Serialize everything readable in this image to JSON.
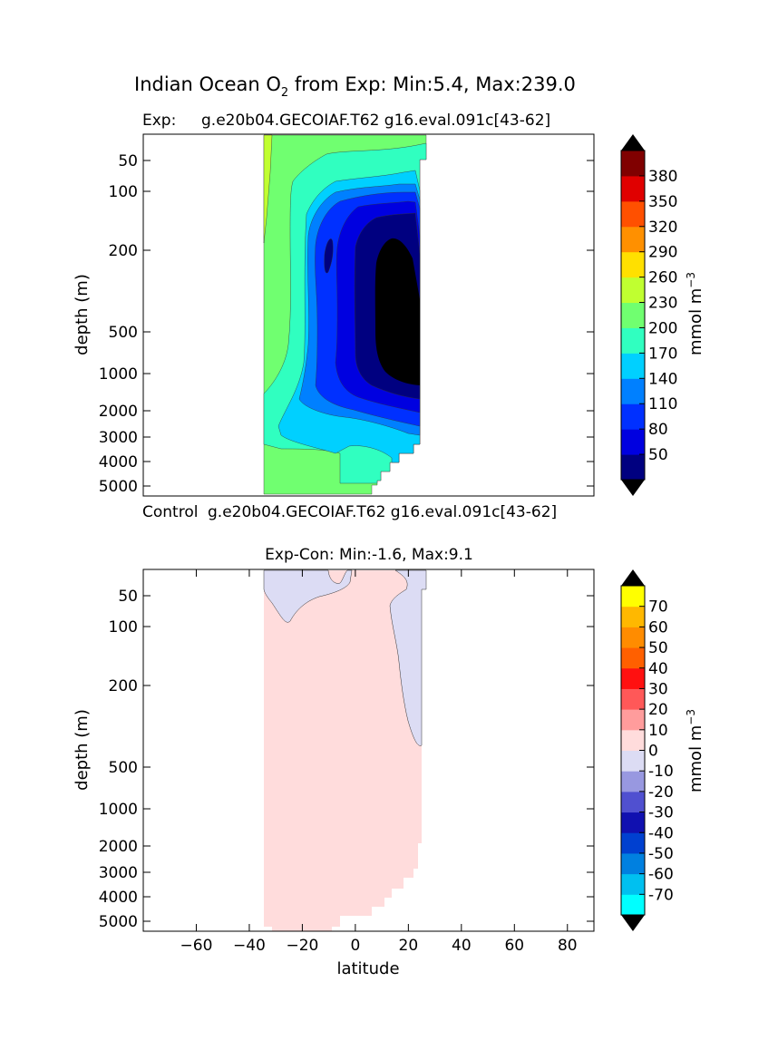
{
  "figure": {
    "suptitle_main": "Indian Ocean O",
    "suptitle_sub": "2",
    "suptitle_rest": " from Exp: Min:5.4, Max:239.0"
  },
  "chart_data": [
    {
      "type": "heatmap",
      "title_left": "Exp:",
      "title_right": "g.e20b04.GECOIAF.T62 g16.eval.091c[43-62]",
      "ylabel": "depth (m)",
      "xlabel": "",
      "x_range": [
        -80,
        90
      ],
      "y_scale": "log-like depth (inverted)",
      "y_range": [
        5600,
        20
      ],
      "yticks": [
        "50",
        "100",
        "200",
        "500",
        "1000",
        "2000",
        "3000",
        "4000",
        "5000"
      ],
      "colorbar": {
        "label": "mmol m",
        "label_exp": "−3",
        "extend": "both",
        "ticks": [
          "50",
          "80",
          "110",
          "140",
          "170",
          "200",
          "230",
          "260",
          "290",
          "320",
          "350",
          "380"
        ],
        "colors": [
          "#000080",
          "#0000e0",
          "#0030ff",
          "#0080ff",
          "#00d0ff",
          "#30ffc0",
          "#70ff70",
          "#c0ff30",
          "#ffe000",
          "#ff9000",
          "#ff5000",
          "#e00000",
          "#800000"
        ],
        "under_color": "#000000",
        "over_color": "#000000"
      },
      "field": {
        "lat_range": [
          -34,
          26
        ],
        "min": 5.4,
        "max": 239.0,
        "levels": [
          {
            "label": "230-260 (near -34° surface)",
            "lat": [
              -34,
              -32
            ],
            "depth": [
              20,
              200
            ]
          },
          {
            "label": "200-230",
            "lat": [
              -34,
              26
            ],
            "depth": [
              20,
              5300
            ]
          },
          {
            "label": "170-200",
            "lat": [
              -20,
              26
            ],
            "depth": [
              30,
              4500
            ]
          },
          {
            "label": "140-170",
            "lat": [
              -15,
              25
            ],
            "depth": [
              80,
              3800
            ]
          },
          {
            "label": "110-140",
            "lat": [
              -12,
              24
            ],
            "depth": [
              100,
              2500
            ]
          },
          {
            "label": "80-110",
            "lat": [
              -10,
              24
            ],
            "depth": [
              100,
              2000
            ]
          },
          {
            "label": "50-80",
            "lat": [
              -5,
              24
            ],
            "depth": [
              90,
              1800
            ]
          },
          {
            "label": "<50",
            "lat": [
              7,
              25
            ],
            "depth": [
              170,
              1300
            ]
          }
        ]
      }
    },
    {
      "type": "heatmap",
      "title_left": "Control",
      "title_right": "g.e20b04.GECOIAF.T62 g16.eval.091c[43-62]",
      "title2": "Exp-Con: Min:-1.6, Max:9.1",
      "ylabel": "depth (m)",
      "xlabel": "latitude",
      "x_range": [
        -80,
        90
      ],
      "xticks": [
        "−60",
        "−40",
        "−20",
        "0",
        "20",
        "40",
        "60",
        "80"
      ],
      "yticks": [
        "50",
        "100",
        "200",
        "500",
        "1000",
        "2000",
        "3000",
        "4000",
        "5000"
      ],
      "colorbar": {
        "label": "mmol m",
        "label_exp": "−3",
        "extend": "both",
        "ticks": [
          "-70",
          "-60",
          "-50",
          "-40",
          "-30",
          "-20",
          "-10",
          "0",
          "10",
          "20",
          "30",
          "40",
          "50",
          "60",
          "70"
        ],
        "colors": [
          "#00ffff",
          "#00c0f0",
          "#0080e0",
          "#0040d0",
          "#1010b0",
          "#5050d0",
          "#9898e0",
          "#dcdcf4",
          "#ffdcdc",
          "#ff9c9c",
          "#ff5858",
          "#ff1010",
          "#ff6000",
          "#ff8c00",
          "#ffb800",
          "#ffff00"
        ],
        "under_color": "#000000",
        "over_color": "#000000"
      },
      "field": {
        "lat_range": [
          -34,
          26
        ],
        "min": -1.6,
        "max": 9.1,
        "regions": [
          {
            "label": "0 to 10",
            "color": "#ffdcdc"
          },
          {
            "label": "-10 to 0 (near surface & north of 15°)",
            "color": "#dcdcf4"
          }
        ]
      }
    }
  ]
}
